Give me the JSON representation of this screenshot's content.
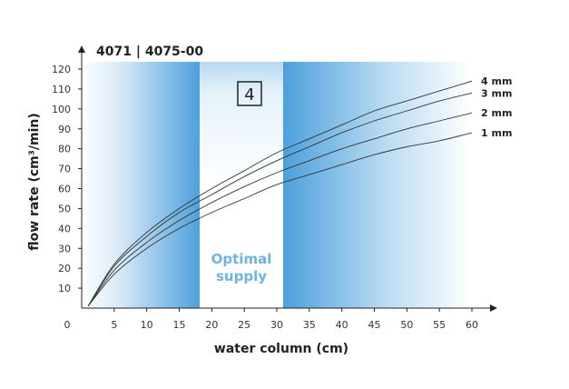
{
  "model_title": "4071 | 4075-00",
  "badge": "4",
  "zone_label_line1": "Optimal",
  "zone_label_line2": "supply",
  "chart_data": {
    "type": "line",
    "xlabel": "water column (cm)",
    "ylabel": "flow rate (cm³/min)",
    "xlim": [
      0,
      60
    ],
    "ylim": [
      0,
      120
    ],
    "x_ticks": [
      0,
      5,
      10,
      15,
      20,
      25,
      30,
      35,
      40,
      45,
      50,
      55,
      60
    ],
    "y_ticks": [
      10,
      20,
      30,
      40,
      50,
      60,
      70,
      80,
      90,
      100,
      110,
      120
    ],
    "optimal_supply_range": [
      19,
      31
    ],
    "grid": false,
    "legend": "series labels at right end of curves",
    "series": [
      {
        "name": "4 mm",
        "x": [
          1,
          5,
          10,
          15,
          20,
          25,
          30,
          35,
          40,
          45,
          50,
          55,
          60
        ],
        "y": [
          1,
          22,
          38,
          50,
          60,
          69,
          78,
          85,
          92,
          99,
          104,
          109,
          114
        ]
      },
      {
        "name": "3 mm",
        "x": [
          1,
          5,
          10,
          15,
          20,
          25,
          30,
          35,
          40,
          45,
          50,
          55,
          60
        ],
        "y": [
          1,
          21,
          36,
          48,
          57,
          66,
          74,
          81,
          88,
          94,
          99,
          104,
          108
        ]
      },
      {
        "name": "2 mm",
        "x": [
          1,
          5,
          10,
          15,
          20,
          25,
          30,
          35,
          40,
          45,
          50,
          55,
          60
        ],
        "y": [
          1,
          19,
          33,
          44,
          53,
          61,
          68,
          74,
          80,
          85,
          90,
          94,
          98
        ]
      },
      {
        "name": "1 mm",
        "x": [
          1,
          5,
          10,
          15,
          20,
          25,
          30,
          35,
          40,
          45,
          50,
          55,
          60
        ],
        "y": [
          1,
          17,
          30,
          40,
          48,
          55,
          62,
          67,
          72,
          77,
          81,
          84,
          88
        ]
      }
    ]
  }
}
